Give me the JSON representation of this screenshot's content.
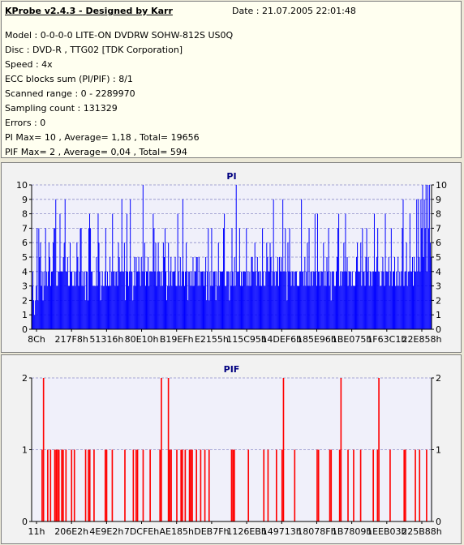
{
  "header": {
    "title": "KProbe v2.4.3 - Designed by Karr",
    "date": "Date : 21.07.2005 22:01:48"
  },
  "info_lines": [
    "Model : 0-0-0-0 LITE-ON DVDRW SOHW-812S  US0Q",
    "Disc : DVD-R , TTG02 [TDK Corporation]",
    "Speed : 4x",
    "ECC blocks sum (PI/PIF) : 8/1",
    "Scanned range : 0 - 2289970",
    "Sampling count : 131329",
    "Errors : 0",
    "PI Max= 10 , Average= 1,18 , Total= 19656",
    "PIF Max= 2 , Average= 0,04 , Total= 594"
  ],
  "colors": {
    "pi_series": "#0000ff",
    "pif_series": "#ff0000",
    "plot_bg": "#f0f0fa",
    "grid": "#8c8cc8",
    "title": "#000080"
  },
  "chart_data": [
    {
      "type": "bar",
      "title": "PI",
      "xlabel": "",
      "ylabel": "",
      "ylim": [
        0,
        10
      ],
      "yticks": [
        0,
        1,
        2,
        3,
        4,
        5,
        6,
        7,
        8,
        9,
        10
      ],
      "xtick_labels": [
        "8Ch",
        "217F8h",
        "51316h",
        "80E10h",
        "B19EFh",
        "E2155h",
        "115C95h",
        "14DEF6h",
        "185E96h",
        "1BE075h",
        "1F63C1h",
        "22E858h"
      ],
      "grid": true,
      "series": [
        {
          "values": [
            3,
            4,
            2,
            1,
            2,
            3,
            7,
            2,
            7,
            5,
            6,
            3,
            4,
            2,
            4,
            3,
            7,
            4,
            3,
            4,
            6,
            5,
            3,
            4,
            4,
            6,
            7,
            7,
            9,
            3,
            3,
            4,
            4,
            8,
            4,
            4,
            4,
            5,
            6,
            9,
            4,
            4,
            5,
            3,
            3,
            6,
            4,
            4,
            3,
            3,
            4,
            3,
            4,
            6,
            5,
            3,
            4,
            7,
            7,
            3,
            4,
            3,
            4,
            2,
            4,
            4,
            2,
            7,
            8,
            7,
            4,
            4,
            3,
            3,
            3,
            3,
            5,
            3,
            8,
            6,
            4,
            2,
            3,
            4,
            3,
            3,
            4,
            7,
            3,
            4,
            3,
            3,
            5,
            3,
            4,
            8,
            4,
            4,
            3,
            4,
            4,
            3,
            6,
            5,
            4,
            4,
            9,
            4,
            4,
            6,
            2,
            4,
            8,
            4,
            3,
            4,
            9,
            4,
            4,
            2,
            3,
            5,
            3,
            5,
            4,
            4,
            5,
            4,
            3,
            5,
            4,
            10,
            4,
            6,
            3,
            4,
            4,
            5,
            3,
            4,
            4,
            4,
            4,
            8,
            7,
            4,
            6,
            3,
            4,
            6,
            4,
            4,
            3,
            4,
            3,
            6,
            5,
            7,
            4,
            2,
            3,
            6,
            3,
            4,
            5,
            3,
            4,
            4,
            4,
            5,
            3,
            3,
            8,
            4,
            3,
            5,
            3,
            4,
            9,
            4,
            3,
            4,
            6,
            4,
            2,
            4,
            4,
            3,
            4,
            3,
            5,
            3,
            4,
            4,
            5,
            5,
            3,
            5,
            3,
            4,
            4,
            4,
            4,
            3,
            4,
            5,
            2,
            4,
            7,
            2,
            4,
            3,
            7,
            3,
            4,
            4,
            4,
            2,
            4,
            3,
            6,
            3,
            4,
            4,
            4,
            4,
            7,
            8,
            3,
            3,
            4,
            4,
            4,
            2,
            4,
            3,
            7,
            4,
            3,
            5,
            3,
            10,
            4,
            4,
            4,
            7,
            3,
            4,
            3,
            4,
            4,
            4,
            4,
            7,
            3,
            4,
            3,
            4,
            3,
            5,
            5,
            4,
            4,
            6,
            4,
            3,
            5,
            4,
            4,
            3,
            4,
            3,
            7,
            4,
            3,
            3,
            4,
            6,
            5,
            4,
            4,
            6,
            5,
            3,
            4,
            9,
            4,
            3,
            4,
            4,
            5,
            3,
            5,
            4,
            5,
            4,
            9,
            4,
            4,
            7,
            4,
            2,
            6,
            4,
            7,
            4,
            3,
            4,
            4,
            3,
            4,
            4,
            4,
            3,
            3,
            3,
            4,
            4,
            9,
            4,
            4,
            3,
            5,
            3,
            4,
            6,
            3,
            7,
            3,
            4,
            4,
            3,
            4,
            4,
            8,
            4,
            3,
            8,
            4,
            4,
            3,
            4,
            4,
            4,
            6,
            3,
            4,
            3,
            5,
            4,
            7,
            3,
            4,
            2,
            4,
            4,
            4,
            3,
            3,
            4,
            5,
            7,
            8,
            3,
            4,
            3,
            4,
            4,
            6,
            4,
            8,
            4,
            5,
            3,
            4,
            4,
            4,
            3,
            4,
            3,
            3,
            3,
            4,
            5,
            6,
            4,
            4,
            4,
            6,
            3,
            7,
            4,
            4,
            3,
            5,
            7,
            4,
            5,
            3,
            4,
            4,
            3,
            4,
            4,
            8,
            4,
            4,
            5,
            7,
            4,
            4,
            3,
            3,
            4,
            5,
            4,
            3,
            8,
            4,
            4,
            4,
            5,
            3,
            4,
            7,
            3,
            4,
            4,
            5,
            3,
            4,
            3,
            5,
            3,
            4,
            3,
            4,
            7,
            9,
            3,
            4,
            4,
            6,
            3,
            4,
            4,
            8,
            4,
            4,
            5,
            3,
            5,
            4,
            4,
            9,
            4,
            9,
            5,
            4,
            9,
            7,
            10,
            5,
            9,
            7,
            10,
            4,
            10,
            7,
            10,
            6,
            5
          ]
        }
      ]
    },
    {
      "type": "bar",
      "title": "PIF",
      "xlabel": "",
      "ylabel": "",
      "ylim": [
        0,
        2
      ],
      "yticks": [
        0,
        1,
        2
      ],
      "xtick_labels": [
        "11h",
        "206E2h",
        "4E9E2h",
        "7DCFEh",
        "AE185h",
        "DEB7Fh",
        "1126EBh",
        "149713h",
        "18078Fh",
        "1B7809h",
        "1EEB03h",
        "225B88h"
      ],
      "grid": true,
      "series": [
        {
          "values": [
            0,
            0,
            0,
            0,
            0,
            0,
            0,
            1,
            2,
            0,
            0,
            1,
            0,
            1,
            0,
            0,
            1,
            1,
            1,
            1,
            0,
            1,
            1,
            0,
            1,
            0,
            0,
            0,
            1,
            0,
            1,
            0,
            0,
            0,
            0,
            0,
            0,
            0,
            1,
            0,
            1,
            1,
            0,
            0,
            1,
            0,
            0,
            0,
            0,
            0,
            0,
            0,
            1,
            1,
            0,
            0,
            0,
            1,
            0,
            0,
            0,
            0,
            0,
            0,
            0,
            0,
            1,
            0,
            0,
            0,
            0,
            0,
            1,
            0,
            1,
            1,
            0,
            0,
            0,
            1,
            0,
            0,
            0,
            0,
            1,
            0,
            0,
            0,
            0,
            0,
            0,
            1,
            2,
            0,
            0,
            0,
            0,
            2,
            1,
            1,
            0,
            0,
            0,
            1,
            0,
            0,
            1,
            1,
            0,
            1,
            0,
            0,
            1,
            1,
            1,
            0,
            0,
            1,
            0,
            0,
            1,
            0,
            0,
            1,
            0,
            0,
            1,
            0,
            0,
            0,
            0,
            0,
            0,
            0,
            0,
            0,
            0,
            0,
            0,
            0,
            0,
            0,
            1,
            1,
            1,
            0,
            0,
            0,
            0,
            0,
            0,
            0,
            0,
            0,
            1,
            0,
            0,
            0,
            0,
            0,
            0,
            0,
            0,
            0,
            0,
            1,
            0,
            0,
            1,
            0,
            0,
            0,
            0,
            0,
            1,
            0,
            0,
            0,
            1,
            2,
            0,
            0,
            0,
            0,
            0,
            0,
            0,
            1,
            0,
            0,
            0,
            0,
            0,
            0,
            0,
            0,
            0,
            0,
            0,
            0,
            0,
            0,
            0,
            1,
            1,
            0,
            0,
            0,
            0,
            0,
            0,
            0,
            1,
            1,
            0,
            0,
            0,
            0,
            0,
            1,
            2,
            0,
            0,
            0,
            0,
            1,
            0,
            0,
            0,
            1,
            0,
            0,
            0,
            0,
            1,
            0,
            0,
            0,
            0,
            0,
            0,
            0,
            0,
            1,
            0,
            0,
            1,
            2,
            0,
            0,
            0,
            0,
            0,
            0,
            0,
            1,
            0,
            0,
            0,
            0,
            0,
            0,
            0,
            0,
            0,
            1,
            1,
            0,
            0,
            0,
            0,
            0,
            0,
            1,
            0,
            0,
            1,
            0,
            0,
            0,
            0,
            1,
            0,
            0,
            0
          ]
        }
      ]
    }
  ]
}
